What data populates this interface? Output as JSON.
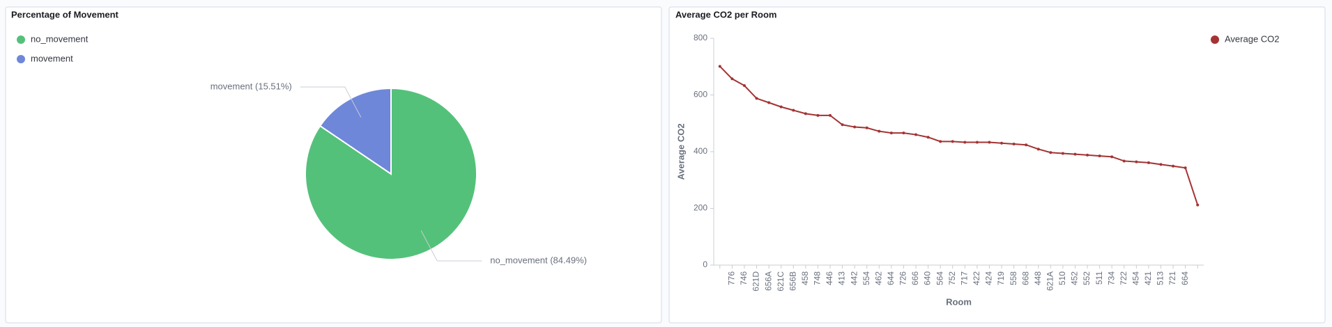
{
  "chart_data": [
    {
      "type": "pie",
      "title": "Percentage of Movement",
      "categories": [
        "no_movement",
        "movement"
      ],
      "values": [
        84.49,
        15.51
      ],
      "value_labels": [
        "no_movement (84.49%)",
        "movement (15.51%)"
      ],
      "colors": [
        "#54c17a",
        "#6e87d9"
      ],
      "legend": "top-left"
    },
    {
      "type": "line",
      "title": "Average CO2 per Room",
      "categories": [
        null,
        "776",
        "746",
        "621D",
        "656A",
        "621C",
        "656B",
        "458",
        "748",
        "446",
        "413",
        "442",
        "554",
        "462",
        "644",
        "726",
        "666",
        "640",
        "564",
        "752",
        "717",
        "422",
        "424",
        "719",
        "558",
        "668",
        "448",
        "621A",
        "510",
        "452",
        "552",
        "511",
        "734",
        "722",
        "454",
        "421",
        "513",
        "721",
        "664",
        null
      ],
      "series": [
        {
          "name": "Average CO2",
          "color": "#a43333",
          "values": [
            701,
            657,
            633,
            588,
            573,
            558,
            546,
            534,
            528,
            528,
            495,
            487,
            484,
            472,
            466,
            466,
            460,
            451,
            436,
            436,
            433,
            433,
            433,
            430,
            427,
            424,
            409,
            397,
            394,
            391,
            388,
            385,
            382,
            367,
            364,
            361,
            355,
            349,
            343,
            212
          ]
        }
      ],
      "xlabel": "Room",
      "ylabel": "Average CO2",
      "ylim": [
        0,
        800
      ],
      "yticks": [
        0,
        200,
        400,
        600,
        800
      ],
      "legend": "top-right"
    }
  ]
}
